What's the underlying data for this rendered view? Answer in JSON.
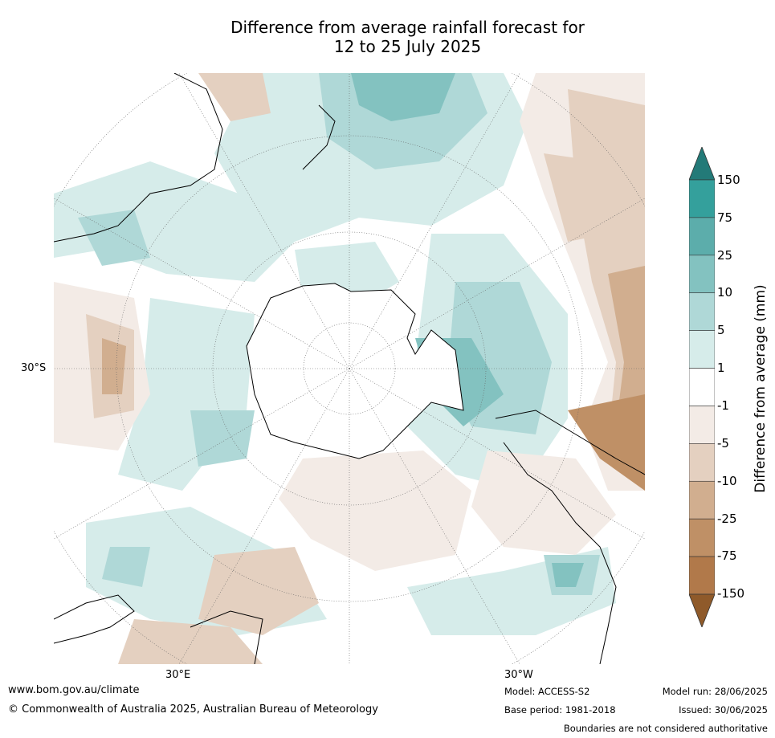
{
  "title_line1": "Difference from average rainfall forecast for",
  "title_line2": "12 to 25 July 2025",
  "map": {
    "lat_label": "30°S",
    "lon_labels": [
      "30°E",
      "30°W"
    ],
    "colors": {
      "land_outline": "#000000",
      "grid": "#666666",
      "wet1": "#d6ecea",
      "wet2": "#afd8d7",
      "wet3": "#83c2c0",
      "dry1": "#f3ebe6",
      "dry2": "#e4d0c0",
      "dry3": "#d1ae8f",
      "dry4": "#bf9066"
    }
  },
  "colorbar": {
    "title": "Difference from average (mm)",
    "ticks": [
      "150",
      "75",
      "25",
      "10",
      "5",
      "1",
      "-1",
      "-5",
      "-10",
      "-25",
      "-75",
      "-150"
    ],
    "colors": [
      "#237a78",
      "#34a09c",
      "#5cadab",
      "#83c2c0",
      "#afd8d7",
      "#d6ecea",
      "#ffffff",
      "#f3ebe6",
      "#e4d0c0",
      "#d1ae8f",
      "#bf9066",
      "#b1794a",
      "#8f5a2a"
    ]
  },
  "footer": {
    "website": "www.bom.gov.au/climate",
    "copyright": "© Commonwealth of Australia 2025, Australian Bureau of Meteorology",
    "model": "Model: ACCESS-S2",
    "model_run": "Model run: 28/06/2025",
    "base_period": "Base period: 1981-2018",
    "issued": "Issued: 30/06/2025",
    "disclaimer": "Boundaries are not considered authoritative"
  }
}
